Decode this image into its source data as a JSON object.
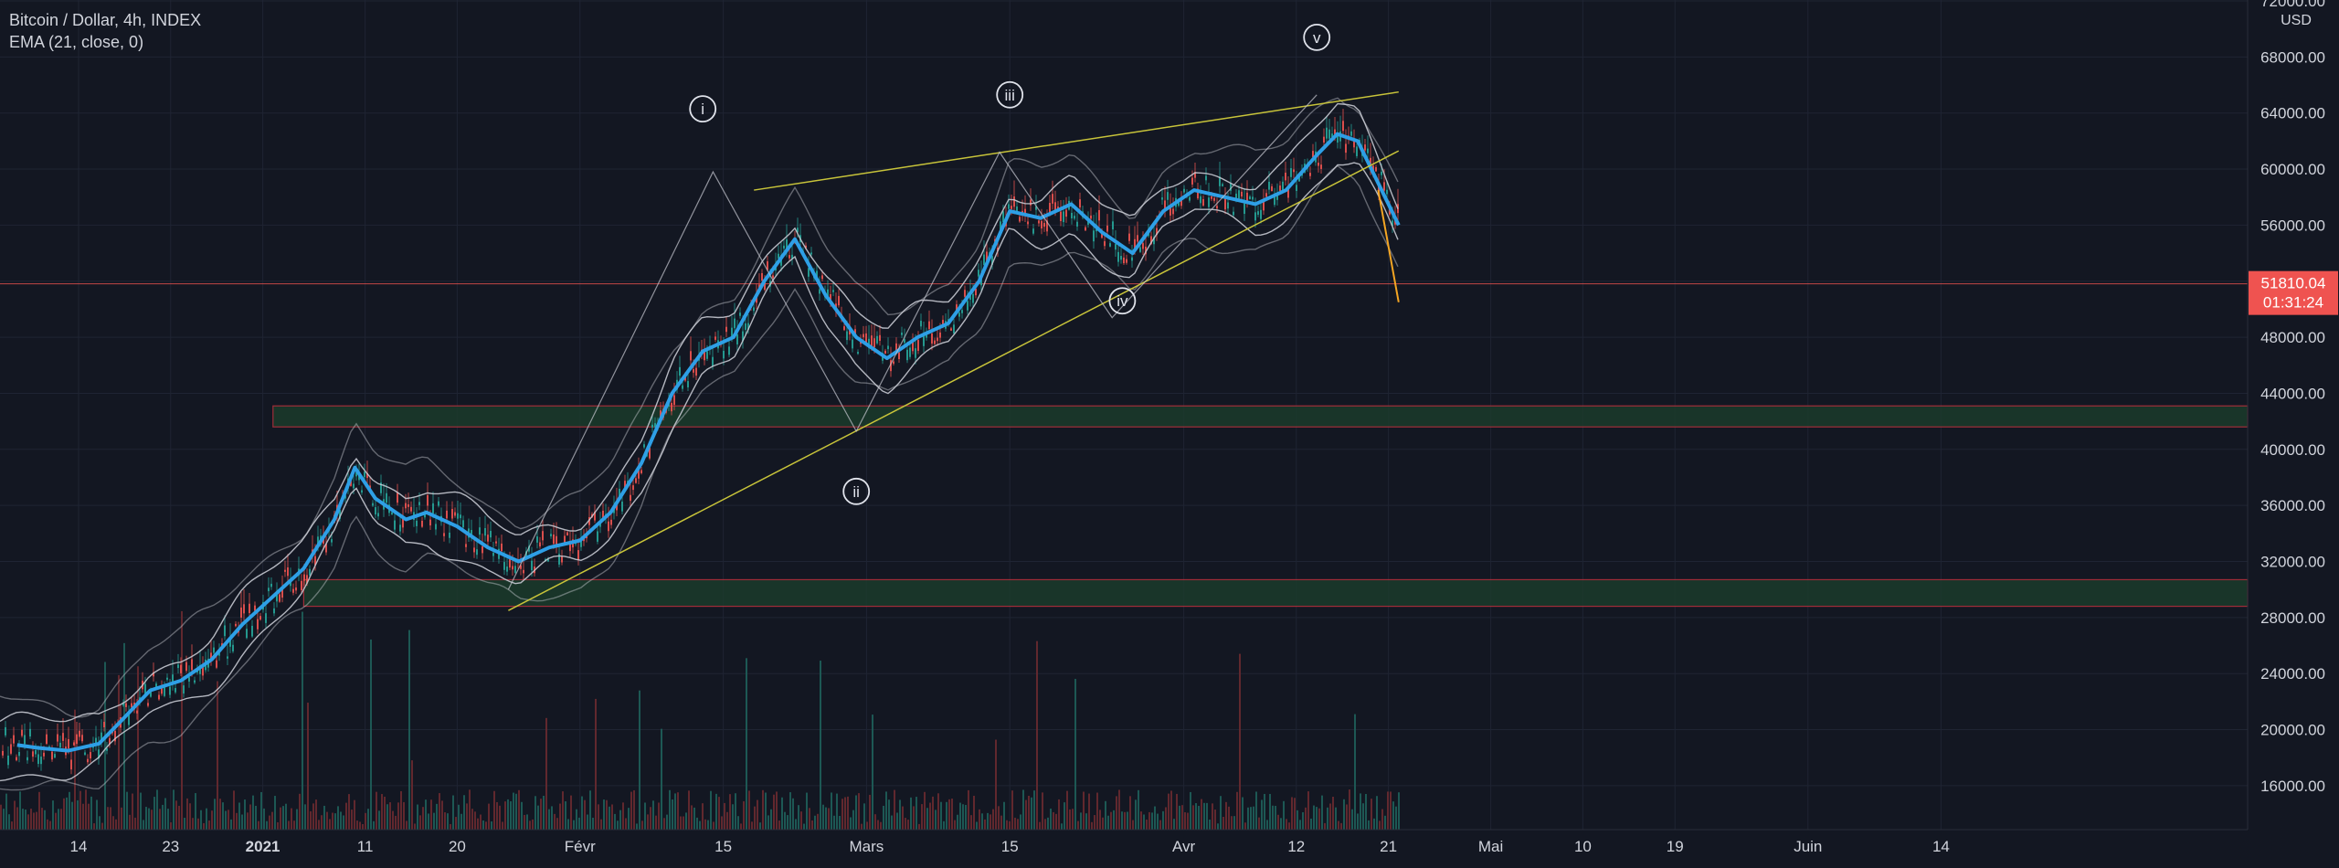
{
  "header": {
    "symbol_line": "Bitcoin / Dollar, 4h, INDEX",
    "indicator_line": "EMA (21, close, 0)"
  },
  "price_axis": {
    "unit": "USD",
    "ticks": [
      "72000.00",
      "68000.00",
      "64000.00",
      "60000.00",
      "56000.00",
      "52000.00",
      "48000.00",
      "44000.00",
      "40000.00",
      "36000.00",
      "32000.00",
      "28000.00",
      "24000.00",
      "20000.00",
      "16000.00"
    ],
    "last_price": "51810.04",
    "countdown": "01:31:24"
  },
  "time_axis": {
    "labels": [
      "14",
      "23",
      "2021",
      "11",
      "20",
      "Févr",
      "15",
      "Mars",
      "15",
      "Avr",
      "12",
      "21",
      "Mai",
      "10",
      "19",
      "Juin",
      "14"
    ]
  },
  "wave_labels": [
    "i",
    "ii",
    "iii",
    "iv",
    "v"
  ],
  "colors": {
    "background": "#131722",
    "grid": "#1f2433",
    "ema": "#2e9fe6",
    "bands": "#c7c9d1",
    "trendline": "#c8c43a",
    "zone_fill": "#1b3b2b",
    "zone_border": "#b8323c",
    "last_price_badge": "#ef5350",
    "candle_up": "#26a69a",
    "candle_down": "#ef5350"
  },
  "chart_data": {
    "type": "line",
    "title": "Bitcoin / Dollar, 4h, INDEX",
    "x_axis": "date",
    "ylim": [
      13000,
      72000
    ],
    "grid": true,
    "series": [
      {
        "name": "EMA (21, close, 0)",
        "x": [
          "2020-12-08",
          "2020-12-10",
          "2020-12-13",
          "2020-12-16",
          "2020-12-18",
          "2020-12-21",
          "2020-12-24",
          "2020-12-27",
          "2020-12-30",
          "2021-01-02",
          "2021-01-05",
          "2021-01-08",
          "2021-01-10",
          "2021-01-12",
          "2021-01-15",
          "2021-01-17",
          "2021-01-20",
          "2021-01-23",
          "2021-01-26",
          "2021-01-29",
          "2021-02-01",
          "2021-02-04",
          "2021-02-07",
          "2021-02-10",
          "2021-02-13",
          "2021-02-16",
          "2021-02-19",
          "2021-02-22",
          "2021-02-25",
          "2021-02-28",
          "2021-03-03",
          "2021-03-06",
          "2021-03-09",
          "2021-03-12",
          "2021-03-15",
          "2021-03-18",
          "2021-03-21",
          "2021-03-24",
          "2021-03-27",
          "2021-03-30",
          "2021-04-02",
          "2021-04-05",
          "2021-04-08",
          "2021-04-11",
          "2021-04-14",
          "2021-04-16",
          "2021-04-18",
          "2021-04-20",
          "2021-04-22"
        ],
        "values": [
          18900,
          18700,
          18500,
          19000,
          20500,
          22800,
          23500,
          25000,
          27500,
          29500,
          31500,
          35000,
          38700,
          36500,
          35000,
          35500,
          34500,
          33000,
          32000,
          33000,
          33500,
          35500,
          39000,
          44000,
          47000,
          48000,
          52000,
          55000,
          51000,
          48000,
          46500,
          48000,
          49000,
          52000,
          57000,
          56500,
          57500,
          55500,
          54000,
          57000,
          58500,
          58000,
          57500,
          58500,
          61000,
          62500,
          62000,
          59000,
          56000
        ]
      }
    ],
    "support_zones": [
      [
        41600,
        43100
      ],
      [
        28800,
        30700
      ]
    ],
    "last_price": 51810.04,
    "annotations": [
      "i",
      "ii",
      "iii",
      "iv",
      "v"
    ]
  }
}
